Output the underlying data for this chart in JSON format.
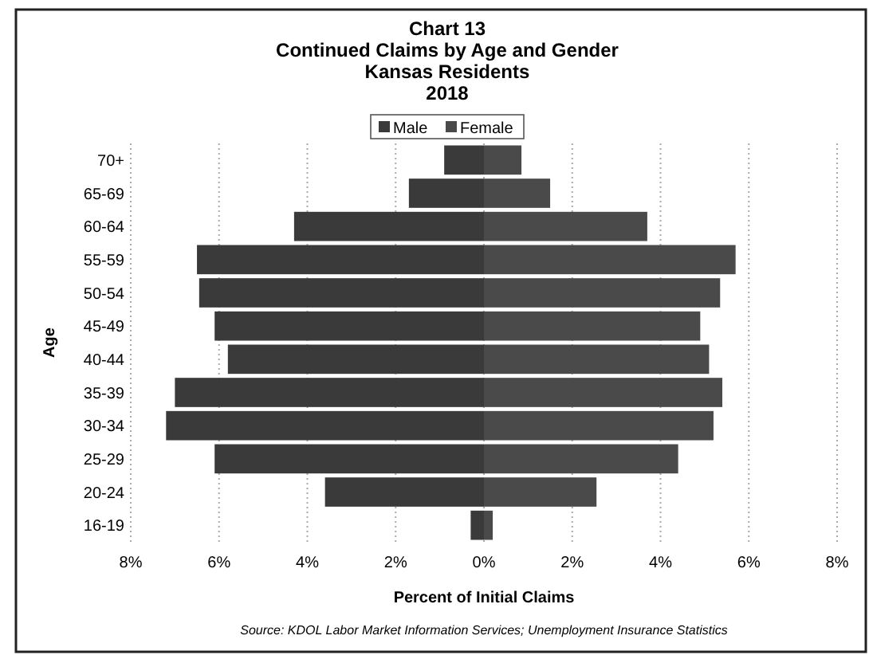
{
  "chart_data": {
    "type": "bar",
    "orientation": "horizontal",
    "title": "Chart 13\nContinued Claims by Age and Gender\nKansas Residents\n2018",
    "xlabel": "Percent of Initial Claims",
    "ylabel": "Age",
    "categories": [
      "70+",
      "65-69",
      "60-64",
      "55-59",
      "50-54",
      "45-49",
      "40-44",
      "35-39",
      "30-34",
      "25-29",
      "20-24",
      "16-19"
    ],
    "series": [
      {
        "name": "Male",
        "color": "#3a3a3a",
        "values": [
          -0.9,
          -1.7,
          -4.3,
          -6.5,
          -6.45,
          -6.1,
          -5.8,
          -7.0,
          -7.2,
          -6.1,
          -3.6,
          -0.3
        ]
      },
      {
        "name": "Female",
        "color": "#4a4a4a",
        "values": [
          0.85,
          1.5,
          3.7,
          5.7,
          5.35,
          4.9,
          5.1,
          5.4,
          5.2,
          4.4,
          2.55,
          0.2
        ]
      }
    ],
    "xlim": [
      -8,
      8
    ],
    "xticks": [
      {
        "value": -8,
        "label": "8%"
      },
      {
        "value": -6,
        "label": "6%"
      },
      {
        "value": -4,
        "label": "4%"
      },
      {
        "value": -2,
        "label": "2%"
      },
      {
        "value": 0,
        "label": "0%"
      },
      {
        "value": 2,
        "label": "2%"
      },
      {
        "value": 4,
        "label": "4%"
      },
      {
        "value": 6,
        "label": "6%"
      },
      {
        "value": 8,
        "label": "8%"
      }
    ],
    "grid": "x",
    "legend": "top",
    "stacked": true,
    "annotations": [
      "Source: KDOL Labor Market Information Services; Unemployment Insurance Statistics"
    ]
  }
}
